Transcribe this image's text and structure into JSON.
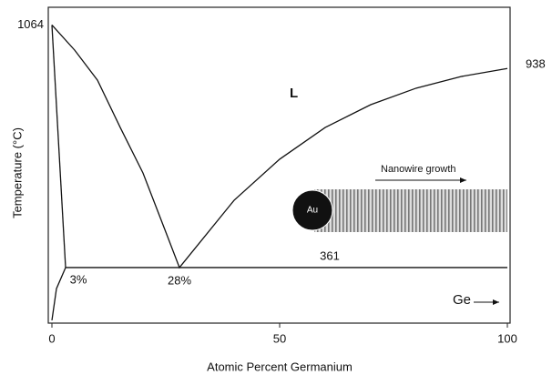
{
  "chart_data": {
    "type": "line",
    "x_label": "Atomic Percent Germanium",
    "y_label": "Temperature (°C)",
    "xlim": [
      0,
      100
    ],
    "xticks": [
      0,
      50,
      100
    ],
    "ylim": [
      200,
      1110
    ],
    "series": [
      {
        "color": "#111111",
        "x": [
          0,
          5,
          10,
          15,
          20,
          25,
          28,
          40,
          50,
          60,
          70,
          80,
          90,
          100
        ],
        "values": [
          1064,
          991,
          904,
          767,
          635,
          464,
          361,
          556,
          675,
          767,
          833,
          881,
          915,
          938
        ]
      },
      {
        "color": "#111111",
        "x": [
          0,
          3
        ],
        "values": [
          1064,
          361
        ]
      },
      {
        "color": "#111111",
        "x": [
          0,
          1,
          3
        ],
        "values": [
          208,
          300,
          361
        ]
      }
    ],
    "melting_points": [
      1064,
      938
    ],
    "eutectic_temperature": 361,
    "eutectic_composition": {
      "value": 28,
      "label": "28%"
    },
    "solubility_limit": {
      "value": 3,
      "label": "3%"
    },
    "phase_label": "L",
    "inset": {
      "title": "Nanowire growth",
      "particle": "Au"
    },
    "axis_note": "Ge"
  }
}
